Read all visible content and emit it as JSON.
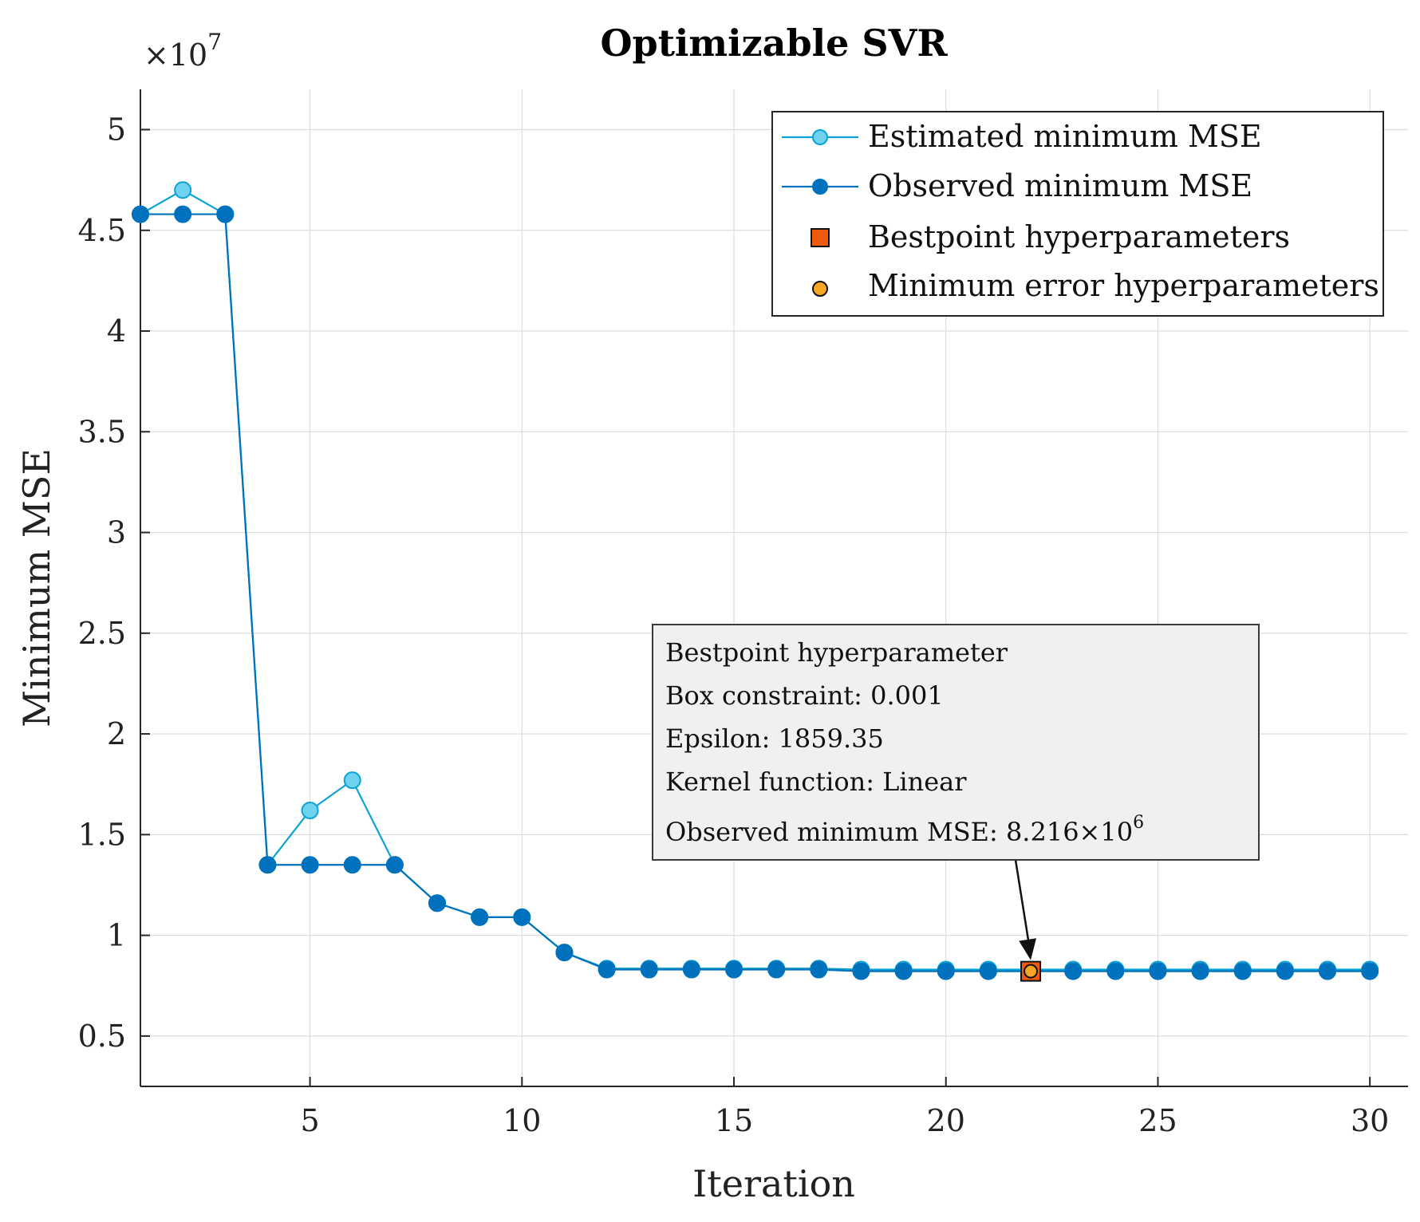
{
  "chart_data": {
    "type": "line",
    "title": "Optimizable SVR",
    "xlabel": "Iteration",
    "ylabel": "Minimum MSE",
    "y_exponent_label": "×10",
    "y_exponent": "7",
    "xlim": [
      1,
      30.9
    ],
    "ylim": [
      0.25,
      5.2
    ],
    "grid": true,
    "x_ticks": [
      5,
      10,
      15,
      20,
      25,
      30
    ],
    "x_tick_labels": [
      "5",
      "10",
      "15",
      "20",
      "25",
      "30"
    ],
    "y_ticks": [
      0.5,
      1,
      1.5,
      2,
      2.5,
      3,
      3.5,
      4,
      4.5,
      5
    ],
    "y_tick_labels": [
      "0.5",
      "1",
      "1.5",
      "2",
      "2.5",
      "3",
      "3.5",
      "4",
      "4.5",
      "5"
    ],
    "series": [
      {
        "name": "Estimated minimum MSE",
        "color": "#0aa3d6",
        "marker_fill": "#6fd3f0",
        "x": [
          1,
          2,
          3,
          4,
          5,
          6,
          7,
          8,
          9,
          10,
          11,
          12,
          13,
          14,
          15,
          16,
          17,
          18,
          19,
          20,
          21,
          22,
          23,
          24,
          25,
          26,
          27,
          28,
          29,
          30
        ],
        "values": [
          4.58,
          4.7,
          4.58,
          1.35,
          1.62,
          1.77,
          1.35,
          1.16,
          1.09,
          1.09,
          0.915,
          0.835,
          0.835,
          0.835,
          0.835,
          0.835,
          0.835,
          0.83,
          0.83,
          0.83,
          0.83,
          0.83,
          0.83,
          0.83,
          0.83,
          0.83,
          0.83,
          0.83,
          0.83,
          0.83
        ]
      },
      {
        "name": "Observed minimum MSE",
        "color": "#0072bd",
        "marker_fill": "#0072bd",
        "x": [
          1,
          2,
          3,
          4,
          5,
          6,
          7,
          8,
          9,
          10,
          11,
          12,
          13,
          14,
          15,
          16,
          17,
          18,
          19,
          20,
          21,
          22,
          23,
          24,
          25,
          26,
          27,
          28,
          29,
          30
        ],
        "values": [
          4.58,
          4.58,
          4.58,
          1.35,
          1.35,
          1.35,
          1.35,
          1.16,
          1.09,
          1.09,
          0.915,
          0.83,
          0.83,
          0.83,
          0.83,
          0.83,
          0.83,
          0.8216,
          0.8216,
          0.8216,
          0.8216,
          0.8216,
          0.8216,
          0.8216,
          0.8216,
          0.8216,
          0.8216,
          0.8216,
          0.8216,
          0.8216
        ]
      }
    ],
    "special_points": [
      {
        "name": "Bestpoint hyperparameters",
        "x": 22,
        "y": 0.8216,
        "marker": "square",
        "color": "#f05a0f"
      },
      {
        "name": "Minimum error hyperparameters",
        "x": 22,
        "y": 0.8216,
        "marker": "circle",
        "color": "#f5a623"
      }
    ],
    "legend": {
      "position": "top-right",
      "entries": [
        "Estimated minimum MSE",
        "Observed minimum MSE",
        "Bestpoint hyperparameters",
        "Minimum error hyperparameters"
      ]
    },
    "annotation": {
      "lines": [
        "Bestpoint hyperparameter",
        "Box constraint: 0.001",
        "Epsilon: 1859.35",
        "Kernel function: Linear"
      ],
      "last_line_prefix": "Observed minimum MSE: 8.216×10",
      "last_line_exponent": "6",
      "points_to": {
        "x": 22,
        "y": 0.8216
      }
    }
  }
}
